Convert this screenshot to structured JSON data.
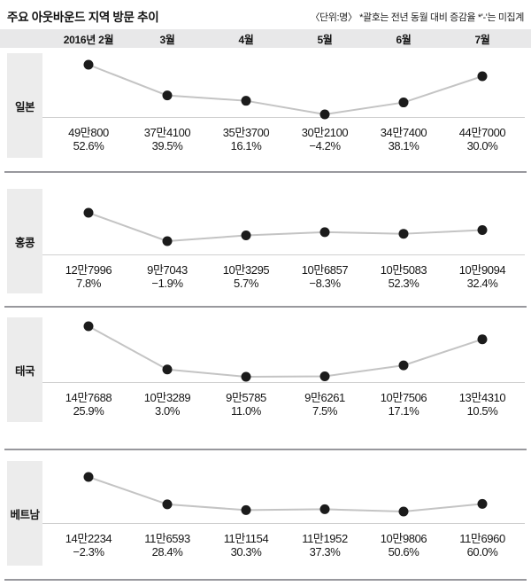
{
  "title": "주요 아웃바운드 지역 방문 추이",
  "note": "〈단위:명〉 *괄호는 전년 동월 대비 증감율 *'-'는 미집계",
  "chart_data": {
    "type": "line",
    "categories": [
      "2016년 2월",
      "3월",
      "4월",
      "5월",
      "6월",
      "7월"
    ],
    "unit": "명",
    "legend_position": "left-row-labels",
    "grid": false,
    "series": [
      {
        "name": "일본",
        "values": [
          490800,
          374100,
          353700,
          302100,
          347400,
          447000
        ],
        "value_labels": [
          "49만800",
          "37만4100",
          "35만3700",
          "30만2100",
          "34만7400",
          "44만7000"
        ],
        "growth_labels": [
          "52.6%",
          "39.5%",
          "16.1%",
          "−4.2%",
          "38.1%",
          "30.0%"
        ]
      },
      {
        "name": "홍콩",
        "values": [
          127996,
          97043,
          103295,
          106857,
          105083,
          109094
        ],
        "value_labels": [
          "12만7996",
          "9만7043",
          "10만3295",
          "10만6857",
          "10만5083",
          "10만9094"
        ],
        "growth_labels": [
          "7.8%",
          "−1.9%",
          "5.7%",
          "−8.3%",
          "52.3%",
          "32.4%"
        ]
      },
      {
        "name": "태국",
        "values": [
          147688,
          103289,
          95785,
          96261,
          107506,
          134310
        ],
        "value_labels": [
          "14만7688",
          "10만3289",
          "9만5785",
          "9만6261",
          "10만7506",
          "13만4310"
        ],
        "growth_labels": [
          "25.9%",
          "3.0%",
          "11.0%",
          "7.5%",
          "17.1%",
          "10.5%"
        ]
      },
      {
        "name": "베트남",
        "values": [
          142234,
          116593,
          111154,
          111952,
          109806,
          116960
        ],
        "value_labels": [
          "14만2234",
          "11만6593",
          "11만1154",
          "11만1952",
          "10만9806",
          "11만6960"
        ],
        "growth_labels": [
          "−2.3%",
          "28.4%",
          "30.3%",
          "37.3%",
          "50.6%",
          "60.0%"
        ]
      }
    ]
  },
  "colors": {
    "dot": "#1b1b1b",
    "trend_line": "#c4c4c4",
    "axis_line": "#cfcfcf",
    "divider": "#98989d",
    "header_band_bg": "#e8e8e9",
    "label_box_bg": "#ececec"
  }
}
